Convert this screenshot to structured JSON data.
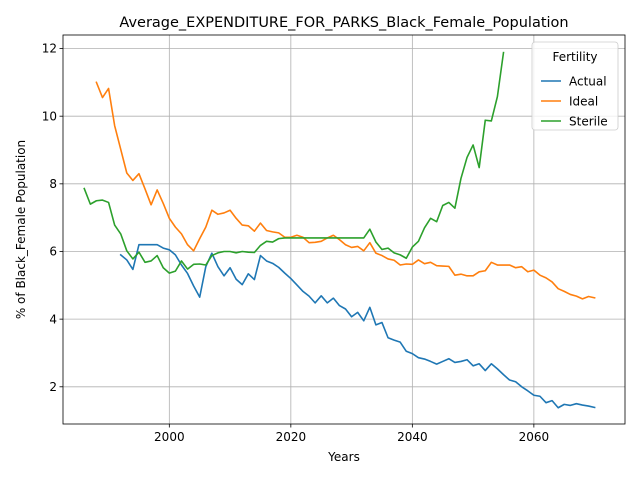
{
  "chart_data": {
    "type": "line",
    "title": "Average_EXPENDITURE_FOR_PARKS_Black_Female_Population",
    "xlabel": "Years",
    "ylabel": "% of Black_Female Population",
    "xlim": [
      1982.5,
      2075
    ],
    "ylim": [
      0.9,
      12.4
    ],
    "x_ticks": [
      {
        "value": 2000,
        "label": "2000"
      },
      {
        "value": 2020,
        "label": "2020"
      },
      {
        "value": 2040,
        "label": "2040"
      },
      {
        "value": 2060,
        "label": "2060"
      }
    ],
    "y_ticks": [
      {
        "value": 2,
        "label": "2"
      },
      {
        "value": 4,
        "label": "4"
      },
      {
        "value": 6,
        "label": "6"
      },
      {
        "value": 8,
        "label": "8"
      },
      {
        "value": 10,
        "label": "10"
      },
      {
        "value": 12,
        "label": "12"
      }
    ],
    "grid": true,
    "legend": {
      "title": "Fertility",
      "placement": "top-right"
    },
    "series": [
      {
        "name": "Actual",
        "color": "#1f77b4",
        "x": [
          1992,
          1993,
          1994,
          1995,
          1996,
          1997,
          1998,
          1999,
          2000,
          2001,
          2002,
          2003,
          2004,
          2005,
          2006,
          2007,
          2008,
          2009,
          2010,
          2011,
          2012,
          2013,
          2014,
          2015,
          2016,
          2017,
          2018,
          2019,
          2020,
          2021,
          2022,
          2023,
          2024,
          2025,
          2026,
          2027,
          2028,
          2029,
          2030,
          2031,
          2032,
          2033,
          2034,
          2035,
          2036,
          2037,
          2038,
          2039,
          2040,
          2041,
          2042,
          2043,
          2044,
          2045,
          2046,
          2047,
          2048,
          2049,
          2050,
          2051,
          2052,
          2053,
          2054,
          2055,
          2056,
          2057,
          2058,
          2059,
          2060,
          2061,
          2062,
          2063,
          2064,
          2065,
          2066,
          2067,
          2068,
          2069,
          2070
        ],
        "y": [
          5.9,
          5.75,
          5.47,
          6.2,
          6.2,
          6.2,
          6.2,
          6.1,
          6.05,
          5.9,
          5.6,
          5.35,
          4.98,
          4.65,
          5.55,
          5.95,
          5.55,
          5.28,
          5.52,
          5.18,
          5.02,
          5.34,
          5.17,
          5.88,
          5.72,
          5.65,
          5.53,
          5.36,
          5.2,
          5.01,
          4.82,
          4.68,
          4.48,
          4.69,
          4.48,
          4.62,
          4.4,
          4.3,
          4.07,
          4.2,
          3.95,
          4.35,
          3.83,
          3.9,
          3.45,
          3.38,
          3.32,
          3.05,
          2.98,
          2.86,
          2.82,
          2.75,
          2.67,
          2.75,
          2.83,
          2.72,
          2.75,
          2.8,
          2.62,
          2.68,
          2.48,
          2.68,
          2.53,
          2.36,
          2.2,
          2.15,
          2.0,
          1.88,
          1.75,
          1.72,
          1.53,
          1.59,
          1.38,
          1.48,
          1.45,
          1.5,
          1.46,
          1.43,
          1.39
        ]
      },
      {
        "name": "Ideal",
        "color": "#ff7f0e",
        "x": [
          1988,
          1989,
          1990,
          1991,
          1992,
          1993,
          1994,
          1995,
          1996,
          1997,
          1998,
          1999,
          2000,
          2001,
          2002,
          2003,
          2004,
          2005,
          2006,
          2007,
          2008,
          2009,
          2010,
          2011,
          2012,
          2013,
          2014,
          2015,
          2016,
          2017,
          2018,
          2019,
          2020,
          2021,
          2022,
          2023,
          2024,
          2025,
          2026,
          2027,
          2028,
          2029,
          2030,
          2031,
          2032,
          2033,
          2034,
          2035,
          2036,
          2037,
          2038,
          2039,
          2040,
          2041,
          2042,
          2043,
          2044,
          2045,
          2046,
          2047,
          2048,
          2049,
          2050,
          2051,
          2052,
          2053,
          2054,
          2055,
          2056,
          2057,
          2058,
          2059,
          2060,
          2061,
          2062,
          2063,
          2064,
          2065,
          2066,
          2067,
          2068,
          2069,
          2070
        ],
        "y": [
          11.0,
          10.55,
          10.82,
          9.72,
          9.02,
          8.32,
          8.1,
          8.3,
          7.85,
          7.38,
          7.82,
          7.42,
          6.98,
          6.72,
          6.52,
          6.2,
          6.02,
          6.38,
          6.72,
          7.22,
          7.1,
          7.14,
          7.22,
          6.98,
          6.78,
          6.76,
          6.6,
          6.84,
          6.62,
          6.58,
          6.55,
          6.42,
          6.42,
          6.48,
          6.42,
          6.26,
          6.27,
          6.3,
          6.4,
          6.48,
          6.35,
          6.2,
          6.12,
          6.15,
          6.02,
          6.26,
          5.95,
          5.88,
          5.78,
          5.74,
          5.6,
          5.63,
          5.62,
          5.75,
          5.64,
          5.68,
          5.58,
          5.57,
          5.56,
          5.3,
          5.33,
          5.28,
          5.28,
          5.4,
          5.43,
          5.68,
          5.6,
          5.6,
          5.6,
          5.52,
          5.55,
          5.4,
          5.45,
          5.3,
          5.22,
          5.1,
          4.9,
          4.82,
          4.73,
          4.68,
          4.6,
          4.67,
          4.63
        ]
      },
      {
        "name": "Sterile",
        "color": "#2ca02c",
        "x": [
          1986,
          1987,
          1988,
          1989,
          1990,
          1991,
          1992,
          1993,
          1994,
          1995,
          1996,
          1997,
          1998,
          1999,
          2000,
          2001,
          2002,
          2003,
          2004,
          2005,
          2006,
          2007,
          2008,
          2009,
          2010,
          2011,
          2012,
          2013,
          2014,
          2015,
          2016,
          2017,
          2018,
          2019,
          2020,
          2021,
          2022,
          2023,
          2024,
          2025,
          2026,
          2027,
          2028,
          2029,
          2030,
          2031,
          2032,
          2033,
          2034,
          2035,
          2036,
          2037,
          2038,
          2039,
          2040,
          2041,
          2042,
          2043,
          2044,
          2045,
          2046,
          2047,
          2048,
          2049,
          2050,
          2051,
          2052,
          2053,
          2054,
          2055
        ],
        "y": [
          7.86,
          7.4,
          7.5,
          7.52,
          7.45,
          6.78,
          6.52,
          6.02,
          5.78,
          5.98,
          5.68,
          5.72,
          5.88,
          5.52,
          5.36,
          5.42,
          5.72,
          5.48,
          5.62,
          5.63,
          5.6,
          5.88,
          5.96,
          6.0,
          6.0,
          5.96,
          6.0,
          5.98,
          5.97,
          6.18,
          6.3,
          6.28,
          6.38,
          6.4,
          6.4,
          6.4,
          6.4,
          6.4,
          6.4,
          6.4,
          6.4,
          6.4,
          6.4,
          6.4,
          6.4,
          6.4,
          6.4,
          6.66,
          6.28,
          6.06,
          6.1,
          5.96,
          5.9,
          5.8,
          6.13,
          6.3,
          6.7,
          6.98,
          6.88,
          7.36,
          7.45,
          7.28,
          8.16,
          8.78,
          9.15,
          8.48,
          9.88,
          9.86,
          10.58,
          11.88
        ]
      }
    ]
  }
}
